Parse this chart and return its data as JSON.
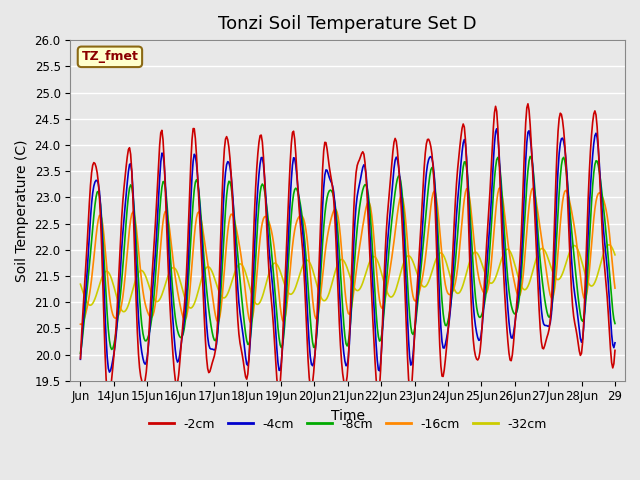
{
  "title": "Tonzi Soil Temperature Set D",
  "xlabel": "Time",
  "ylabel": "Soil Temperature (C)",
  "ylim": [
    19.5,
    26.0
  ],
  "yticks": [
    19.5,
    20.0,
    20.5,
    21.0,
    21.5,
    22.0,
    22.5,
    23.0,
    23.5,
    24.0,
    24.5,
    25.0,
    25.5,
    26.0
  ],
  "xtick_positions": [
    0,
    1,
    2,
    3,
    4,
    5,
    6,
    7,
    8,
    9,
    10,
    11,
    12,
    13,
    14,
    15,
    16
  ],
  "xtick_labels": [
    "Jun",
    "14Jun",
    "15Jun",
    "16Jun",
    "17Jun",
    "18Jun",
    "19Jun",
    "20Jun",
    "21Jun",
    "22Jun",
    "23Jun",
    "24Jun",
    "25Jun",
    "26Jun",
    "27Jun",
    "28Jun",
    "29"
  ],
  "series_colors": [
    "#cc0000",
    "#0000cc",
    "#00aa00",
    "#ff8800",
    "#cccc00"
  ],
  "series_labels": [
    "-2cm",
    "-4cm",
    "-8cm",
    "-16cm",
    "-32cm"
  ],
  "legend_label": "TZ_fmet",
  "background_color": "#e8e8e8",
  "plot_bg_color": "#e8e8e8",
  "grid_color": "#ffffff",
  "n_points": 480,
  "x_end": 16,
  "title_fontsize": 13,
  "axis_label_fontsize": 10,
  "tick_fontsize": 8.5
}
